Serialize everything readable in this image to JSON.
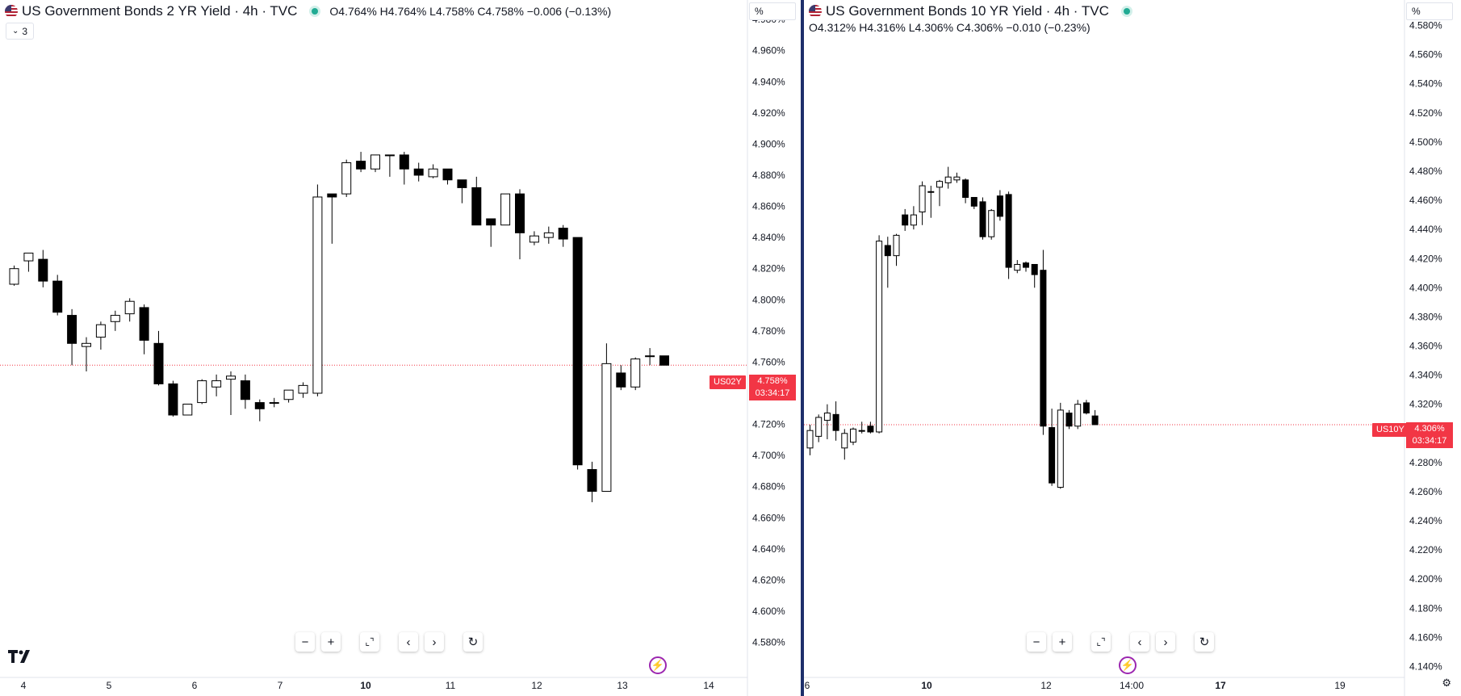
{
  "colors": {
    "up_fill": "#ffffff",
    "down_fill": "#000000",
    "candle_outline": "#000000",
    "price_line": "#f23645",
    "dot": "#22ab94"
  },
  "left": {
    "title": "US Government Bonds 2 YR Yield · 4h · TVC",
    "ohlc": "O4.764%  H4.764%  L4.758%  C4.758%  −0.006 (−0.13%)",
    "badge_count": "3",
    "unit": "%",
    "symbol_tag": "US02Y",
    "price_label": "4.758%",
    "countdown": "03:34:17",
    "toolbar_icons": [
      "minus-icon",
      "plus-icon",
      "reset-zoom-icon",
      "scroll-left-icon",
      "scroll-right-icon",
      "reset-chart-icon"
    ]
  },
  "right": {
    "title": "US Government Bonds 10 YR Yield · 4h · TVC",
    "ohlc": "O4.312%  H4.316%  L4.306%  C4.306%  −0.010 (−0.23%)",
    "unit": "%",
    "symbol_tag": "US10Y",
    "price_label": "4.306%",
    "countdown": "03:34:17",
    "toolbar_icons": [
      "minus-icon",
      "plus-icon",
      "reset-zoom-icon",
      "scroll-left-icon",
      "scroll-right-icon",
      "reset-chart-icon"
    ]
  },
  "chart_data": [
    {
      "type": "candlestick",
      "title": "US Government Bonds 2 YR Yield · 4h · TVC",
      "ylim": [
        4.5575,
        4.9925
      ],
      "y_ticks": [
        "4.980%",
        "4.960%",
        "4.940%",
        "4.920%",
        "4.900%",
        "4.880%",
        "4.860%",
        "4.840%",
        "4.820%",
        "4.800%",
        "4.780%",
        "4.760%",
        "4.740%",
        "4.720%",
        "4.700%",
        "4.680%",
        "4.660%",
        "4.640%",
        "4.620%",
        "4.600%",
        "4.580%"
      ],
      "x_ticks": [
        {
          "label": "4",
          "bold": false
        },
        {
          "label": "5",
          "bold": false
        },
        {
          "label": "6",
          "bold": false
        },
        {
          "label": "7",
          "bold": false
        },
        {
          "label": "10",
          "bold": true
        },
        {
          "label": "11",
          "bold": false
        },
        {
          "label": "12",
          "bold": false
        },
        {
          "label": "13",
          "bold": false
        },
        {
          "label": "14",
          "bold": false
        }
      ],
      "last_price": 4.758,
      "candles": [
        {
          "o": 4.81,
          "h": 4.822,
          "l": 4.809,
          "c": 4.82
        },
        {
          "o": 4.825,
          "h": 4.828,
          "l": 4.818,
          "c": 4.83
        },
        {
          "o": 4.826,
          "h": 4.832,
          "l": 4.808,
          "c": 4.812
        },
        {
          "o": 4.812,
          "h": 4.816,
          "l": 4.79,
          "c": 4.792
        },
        {
          "o": 4.79,
          "h": 4.794,
          "l": 4.758,
          "c": 4.772
        },
        {
          "o": 4.77,
          "h": 4.776,
          "l": 4.754,
          "c": 4.772
        },
        {
          "o": 4.776,
          "h": 4.786,
          "l": 4.768,
          "c": 4.784
        },
        {
          "o": 4.786,
          "h": 4.793,
          "l": 4.78,
          "c": 4.79
        },
        {
          "o": 4.791,
          "h": 4.801,
          "l": 4.786,
          "c": 4.799
        },
        {
          "o": 4.795,
          "h": 4.797,
          "l": 4.765,
          "c": 4.774
        },
        {
          "o": 4.772,
          "h": 4.78,
          "l": 4.745,
          "c": 4.746
        },
        {
          "o": 4.746,
          "h": 4.748,
          "l": 4.725,
          "c": 4.726
        },
        {
          "o": 4.726,
          "h": 4.733,
          "l": 4.726,
          "c": 4.733
        },
        {
          "o": 4.734,
          "h": 4.749,
          "l": 4.733,
          "c": 4.748
        },
        {
          "o": 4.744,
          "h": 4.752,
          "l": 4.738,
          "c": 4.748
        },
        {
          "o": 4.749,
          "h": 4.754,
          "l": 4.726,
          "c": 4.751
        },
        {
          "o": 4.748,
          "h": 4.752,
          "l": 4.73,
          "c": 4.736
        },
        {
          "o": 4.734,
          "h": 4.736,
          "l": 4.722,
          "c": 4.73
        },
        {
          "o": 4.734,
          "h": 4.737,
          "l": 4.731,
          "c": 4.734
        },
        {
          "o": 4.736,
          "h": 4.742,
          "l": 4.734,
          "c": 4.742
        },
        {
          "o": 4.74,
          "h": 4.747,
          "l": 4.737,
          "c": 4.745
        },
        {
          "o": 4.74,
          "h": 4.874,
          "l": 4.738,
          "c": 4.866
        },
        {
          "o": 4.868,
          "h": 4.866,
          "l": 4.836,
          "c": 4.866
        },
        {
          "o": 4.868,
          "h": 4.89,
          "l": 4.866,
          "c": 4.888
        },
        {
          "o": 4.889,
          "h": 4.895,
          "l": 4.882,
          "c": 4.884
        },
        {
          "o": 4.884,
          "h": 4.893,
          "l": 4.882,
          "c": 4.893
        },
        {
          "o": 4.893,
          "h": 4.892,
          "l": 4.879,
          "c": 4.893
        },
        {
          "o": 4.893,
          "h": 4.895,
          "l": 4.874,
          "c": 4.884
        },
        {
          "o": 4.884,
          "h": 4.888,
          "l": 4.876,
          "c": 4.88
        },
        {
          "o": 4.879,
          "h": 4.887,
          "l": 4.878,
          "c": 4.884
        },
        {
          "o": 4.884,
          "h": 4.884,
          "l": 4.874,
          "c": 4.877
        },
        {
          "o": 4.877,
          "h": 4.873,
          "l": 4.862,
          "c": 4.872
        },
        {
          "o": 4.872,
          "h": 4.879,
          "l": 4.848,
          "c": 4.848
        },
        {
          "o": 4.852,
          "h": 4.852,
          "l": 4.834,
          "c": 4.848
        },
        {
          "o": 4.848,
          "h": 4.868,
          "l": 4.848,
          "c": 4.868
        },
        {
          "o": 4.868,
          "h": 4.871,
          "l": 4.826,
          "c": 4.843
        },
        {
          "o": 4.837,
          "h": 4.844,
          "l": 4.835,
          "c": 4.841
        },
        {
          "o": 4.84,
          "h": 4.847,
          "l": 4.836,
          "c": 4.843
        },
        {
          "o": 4.846,
          "h": 4.848,
          "l": 4.834,
          "c": 4.839
        },
        {
          "o": 4.84,
          "h": 4.84,
          "l": 4.691,
          "c": 4.694
        },
        {
          "o": 4.691,
          "h": 4.696,
          "l": 4.67,
          "c": 4.677
        },
        {
          "o": 4.677,
          "h": 4.772,
          "l": 4.677,
          "c": 4.759
        },
        {
          "o": 4.753,
          "h": 4.758,
          "l": 4.742,
          "c": 4.744
        },
        {
          "o": 4.744,
          "h": 4.763,
          "l": 4.742,
          "c": 4.762
        },
        {
          "o": 4.764,
          "h": 4.769,
          "l": 4.758,
          "c": 4.764
        },
        {
          "o": 4.764,
          "h": 4.764,
          "l": 4.758,
          "c": 4.758
        }
      ]
    },
    {
      "type": "candlestick",
      "title": "US Government Bonds 10 YR Yield · 4h · TVC",
      "ylim": [
        4.1325,
        4.5975
      ],
      "y_ticks": [
        "4.580%",
        "4.560%",
        "4.540%",
        "4.520%",
        "4.500%",
        "4.480%",
        "4.460%",
        "4.440%",
        "4.420%",
        "4.400%",
        "4.380%",
        "4.360%",
        "4.340%",
        "4.320%",
        "4.300%",
        "4.280%",
        "4.260%",
        "4.240%",
        "4.220%",
        "4.200%",
        "4.180%",
        "4.160%",
        "4.140%"
      ],
      "x_ticks": [
        {
          "label": "6",
          "bold": false
        },
        {
          "label": "10",
          "bold": true
        },
        {
          "label": "12",
          "bold": false
        },
        {
          "label": "14:00",
          "bold": false
        },
        {
          "label": "17",
          "bold": true
        },
        {
          "label": "19",
          "bold": false
        }
      ],
      "last_price": 4.306,
      "candles": [
        {
          "o": 4.29,
          "h": 4.306,
          "l": 4.285,
          "c": 4.302
        },
        {
          "o": 4.298,
          "h": 4.313,
          "l": 4.294,
          "c": 4.311
        },
        {
          "o": 4.309,
          "h": 4.32,
          "l": 4.296,
          "c": 4.314
        },
        {
          "o": 4.313,
          "h": 4.322,
          "l": 4.295,
          "c": 4.302
        },
        {
          "o": 4.29,
          "h": 4.303,
          "l": 4.282,
          "c": 4.3
        },
        {
          "o": 4.294,
          "h": 4.304,
          "l": 4.292,
          "c": 4.303
        },
        {
          "o": 4.302,
          "h": 4.308,
          "l": 4.3,
          "c": 4.302
        },
        {
          "o": 4.305,
          "h": 4.308,
          "l": 4.3,
          "c": 4.301
        },
        {
          "o": 4.301,
          "h": 4.436,
          "l": 4.3,
          "c": 4.432
        },
        {
          "o": 4.429,
          "h": 4.435,
          "l": 4.4,
          "c": 4.422
        },
        {
          "o": 4.422,
          "h": 4.437,
          "l": 4.415,
          "c": 4.436
        },
        {
          "o": 4.45,
          "h": 4.454,
          "l": 4.439,
          "c": 4.443
        },
        {
          "o": 4.443,
          "h": 4.456,
          "l": 4.44,
          "c": 4.45
        },
        {
          "o": 4.452,
          "h": 4.473,
          "l": 4.443,
          "c": 4.47
        },
        {
          "o": 4.466,
          "h": 4.47,
          "l": 4.448,
          "c": 4.466
        },
        {
          "o": 4.469,
          "h": 4.474,
          "l": 4.456,
          "c": 4.473
        },
        {
          "o": 4.472,
          "h": 4.483,
          "l": 4.468,
          "c": 4.476
        },
        {
          "o": 4.474,
          "h": 4.479,
          "l": 4.472,
          "c": 4.476
        },
        {
          "o": 4.474,
          "h": 4.475,
          "l": 4.458,
          "c": 4.462
        },
        {
          "o": 4.462,
          "h": 4.461,
          "l": 4.454,
          "c": 4.456
        },
        {
          "o": 4.459,
          "h": 4.462,
          "l": 4.433,
          "c": 4.435
        },
        {
          "o": 4.435,
          "h": 4.454,
          "l": 4.433,
          "c": 4.453
        },
        {
          "o": 4.463,
          "h": 4.467,
          "l": 4.446,
          "c": 4.449
        },
        {
          "o": 4.464,
          "h": 4.466,
          "l": 4.406,
          "c": 4.414
        },
        {
          "o": 4.412,
          "h": 4.419,
          "l": 4.41,
          "c": 4.416
        },
        {
          "o": 4.417,
          "h": 4.418,
          "l": 4.411,
          "c": 4.414
        },
        {
          "o": 4.416,
          "h": 4.414,
          "l": 4.4,
          "c": 4.409
        },
        {
          "o": 4.412,
          "h": 4.426,
          "l": 4.299,
          "c": 4.305
        },
        {
          "o": 4.304,
          "h": 4.317,
          "l": 4.264,
          "c": 4.266
        },
        {
          "o": 4.263,
          "h": 4.321,
          "l": 4.262,
          "c": 4.316
        },
        {
          "o": 4.314,
          "h": 4.316,
          "l": 4.303,
          "c": 4.305
        },
        {
          "o": 4.305,
          "h": 4.323,
          "l": 4.303,
          "c": 4.32
        },
        {
          "o": 4.321,
          "h": 4.323,
          "l": 4.313,
          "c": 4.314
        },
        {
          "o": 4.312,
          "h": 4.316,
          "l": 4.306,
          "c": 4.306
        }
      ]
    }
  ]
}
